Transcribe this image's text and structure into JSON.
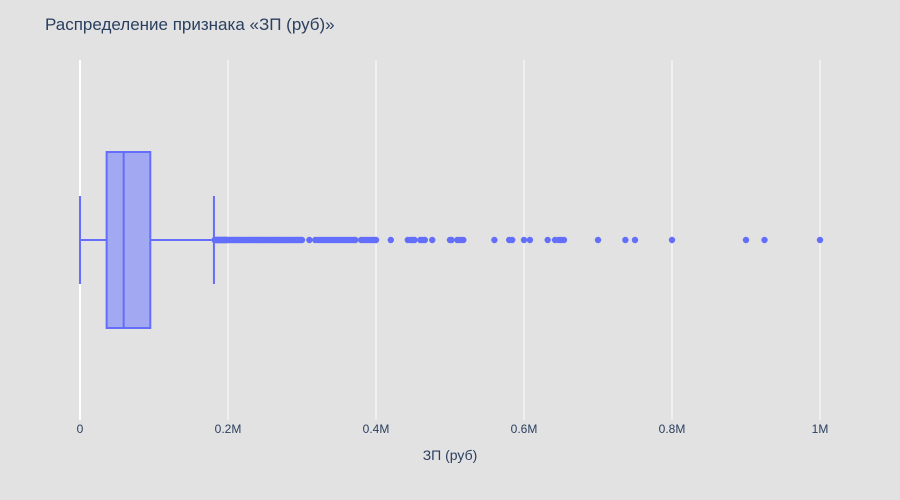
{
  "chart_data": {
    "type": "box",
    "orientation": "horizontal",
    "title": "Распределение признака «ЗП (руб)»",
    "xlabel": "ЗП (руб)",
    "ylabel": "",
    "xlim": [
      0,
      1000000
    ],
    "x_ticks": [
      {
        "value": 0,
        "label": "0"
      },
      {
        "value": 200000,
        "label": "0.2M"
      },
      {
        "value": 400000,
        "label": "0.4M"
      },
      {
        "value": 600000,
        "label": "0.6M"
      },
      {
        "value": 800000,
        "label": "0.8M"
      },
      {
        "value": 1000000,
        "label": "1M"
      }
    ],
    "grid": true,
    "colors": {
      "background": "#e2e2e2",
      "grid": "#ffffff",
      "box_line": "#636efa",
      "box_fill": "#a3a8f2"
    },
    "box": {
      "lower_fence": 0,
      "q1": 36000,
      "median": 59000,
      "q3": 95000,
      "upper_fence": 181000
    },
    "outliers": [
      182000,
      183000,
      184000,
      185000,
      186000,
      187000,
      188000,
      189000,
      190000,
      191000,
      192000,
      193000,
      194000,
      195000,
      196000,
      197000,
      198000,
      199000,
      200000,
      202000,
      204000,
      206000,
      208000,
      210000,
      212000,
      214000,
      216000,
      218000,
      220000,
      222000,
      224000,
      226000,
      228000,
      230000,
      232000,
      234000,
      236000,
      238000,
      240000,
      242000,
      244000,
      246000,
      248000,
      250000,
      252000,
      254000,
      256000,
      258000,
      260000,
      262000,
      264000,
      266000,
      268000,
      270000,
      272000,
      274000,
      276000,
      278000,
      280000,
      282000,
      284000,
      286000,
      288000,
      290000,
      292000,
      294000,
      296000,
      298000,
      300000,
      310000,
      318000,
      322000,
      325000,
      328000,
      331000,
      334000,
      337000,
      340000,
      343000,
      346000,
      349000,
      352000,
      355000,
      358000,
      361000,
      364000,
      367000,
      370000,
      372000,
      380000,
      383000,
      386000,
      389000,
      392000,
      395000,
      398000,
      400000,
      420000,
      443000,
      447000,
      450000,
      452000,
      460000,
      463000,
      466000,
      476000,
      500000,
      502000,
      510000,
      514000,
      518000,
      560000,
      580000,
      584000,
      600000,
      608000,
      632000,
      642000,
      647000,
      650000,
      654000,
      700000,
      737000,
      750000,
      800000,
      900000,
      925000,
      1000000
    ]
  }
}
